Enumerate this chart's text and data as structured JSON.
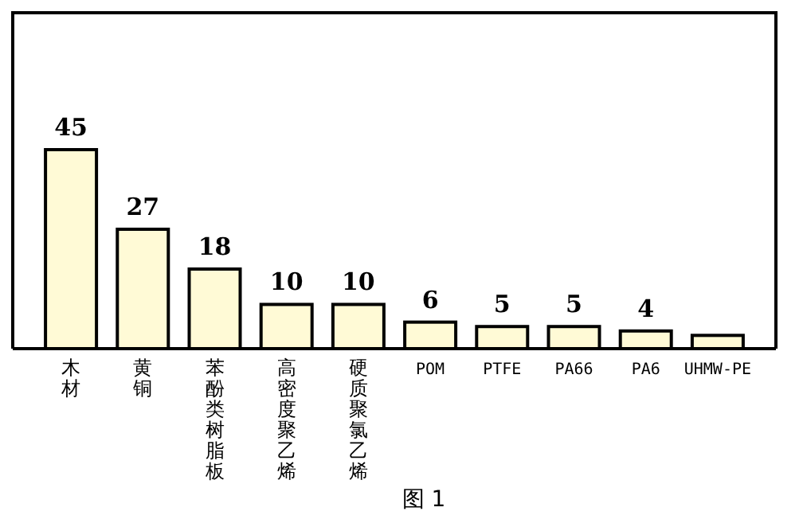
{
  "chart_data": {
    "type": "bar",
    "categories": [
      "木材",
      "黄铜",
      "苯酚类树脂板",
      "高密度聚乙烯",
      "硬质聚氯乙烯",
      "POM",
      "PTFE",
      "PA66",
      "PA6",
      "UHMW-PE"
    ],
    "values": [
      45,
      27,
      18,
      10,
      10,
      6,
      5,
      5,
      4,
      3
    ],
    "value_labels": [
      "45",
      "27",
      "18",
      "10",
      "10",
      "6",
      "5",
      "5",
      "4",
      null
    ],
    "color": "#fffad6",
    "annotations": [
      "图 1"
    ]
  }
}
